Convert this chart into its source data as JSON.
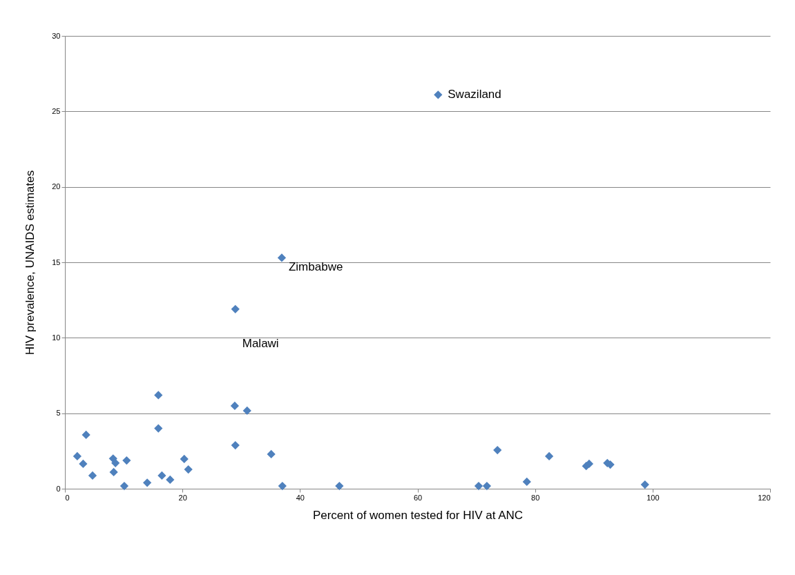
{
  "chart_data": {
    "type": "scatter",
    "xlabel": "Percent of women tested for HIV at ANC",
    "ylabel": "HIV prevalence, UNAIDS estimates",
    "x": [
      2.1,
      3.1,
      3.6,
      4.7,
      8.2,
      8.6,
      8.3,
      10.1,
      10.5,
      14.0,
      15.9,
      15.9,
      16.5,
      17.9,
      20.3,
      21.0,
      28.9,
      29.0,
      29.0,
      31.0,
      35.1,
      36.9,
      37.0,
      46.7,
      63.5,
      70.4,
      71.8,
      73.6,
      78.6,
      82.4,
      88.7,
      89.2,
      92.3,
      92.8,
      98.7
    ],
    "series": [
      {
        "color": "#4f81bd",
        "values": [
          2.15,
          1.65,
          3.57,
          0.87,
          2.0,
          1.7,
          1.1,
          0.18,
          1.87,
          0.4,
          6.2,
          4.0,
          0.87,
          0.6,
          1.97,
          1.28,
          5.49,
          11.9,
          2.88,
          5.17,
          2.29,
          15.3,
          0.18,
          0.18,
          26.1,
          0.18,
          0.18,
          2.56,
          0.46,
          2.15,
          1.5,
          1.65,
          1.7,
          1.6,
          0.27
        ]
      }
    ],
    "xlim": [
      0,
      120
    ],
    "xticks": [
      0,
      20,
      40,
      60,
      80,
      100,
      120
    ],
    "ylim": [
      0,
      30
    ],
    "yticks": [
      0,
      5,
      10,
      15,
      20,
      25,
      30
    ],
    "grid": "y",
    "marker": "diamond",
    "annotations": [
      {
        "text": "Swaziland",
        "x": 63.5,
        "y": 26.1
      },
      {
        "text": "Zimbabwe",
        "x": 36.9,
        "y": 15.3
      },
      {
        "text": "Malawi",
        "x": 29.0,
        "y": 11.9
      }
    ]
  }
}
